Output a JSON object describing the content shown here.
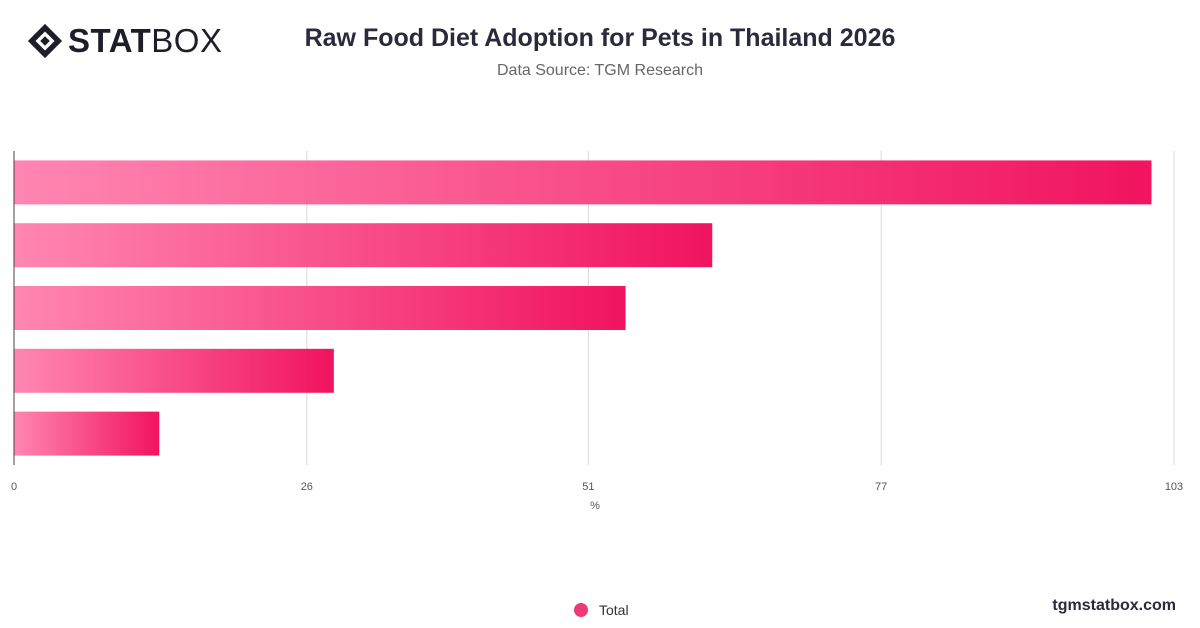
{
  "brand": {
    "logo_bold": "STAT",
    "logo_light": "BOX",
    "footer": "tgmstatbox.com"
  },
  "legend": {
    "label": "Total",
    "color": "#ee3a7c"
  },
  "chart_data": {
    "type": "bar",
    "orientation": "horizontal",
    "title": "Raw Food Diet Adoption for Pets in Thailand 2026",
    "subtitle": "Data Source: TGM Research",
    "xlabel": "%",
    "ylabel": "",
    "xlim": [
      0,
      103
    ],
    "ticks": [
      0,
      26,
      51,
      77,
      103
    ],
    "grid": true,
    "legend_position": "bottom",
    "colors": {
      "bar_start": "#ff86b2",
      "bar_end": "#f1135f"
    },
    "categories": [
      "",
      "",
      "",
      "",
      ""
    ],
    "series": [
      {
        "name": "Total",
        "values": [
          101,
          62,
          54.3,
          28.4,
          12.9
        ]
      }
    ]
  }
}
